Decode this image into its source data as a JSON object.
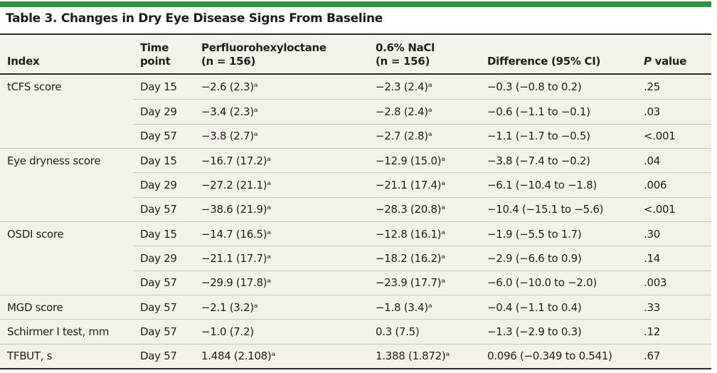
{
  "title": "Table 3. Changes in Dry Eye Disease Signs From Baseline",
  "colors": {
    "accent_green": "#2e9440",
    "table_bg": "#f3f1e8",
    "rule_dark": "#2b2b26",
    "rule_light": "#c9c7bb"
  },
  "header": {
    "index": "Index",
    "time_point": [
      "Time",
      "point"
    ],
    "drug": [
      "Perfluorohexyloctane",
      "(n = 156)"
    ],
    "control": [
      "0.6% NaCl",
      "(n = 156)"
    ],
    "difference": "Difference (95% CI)",
    "p_label_italic": "P",
    "p_label_rest": "value"
  },
  "rows": [
    {
      "index": "tCFS score",
      "time": "Day 15",
      "drug": "−2.6 (2.3)ᵃ",
      "control": "−2.3 (2.4)ᵃ",
      "diff": "−0.3 (−0.8 to 0.2)",
      "p": ".25"
    },
    {
      "index": "",
      "time": "Day 29",
      "drug": "−3.4 (2.3)ᵃ",
      "control": "−2.8 (2.4)ᵃ",
      "diff": "−0.6 (−1.1 to −0.1)",
      "p": ".03"
    },
    {
      "index": "",
      "time": "Day 57",
      "drug": "−3.8 (2.7)ᵃ",
      "control": "−2.7 (2.8)ᵃ",
      "diff": "−1.1 (−1.7 to −0.5)",
      "p": "<.001"
    },
    {
      "index": "Eye dryness score",
      "time": "Day 15",
      "drug": "−16.7 (17.2)ᵃ",
      "control": "−12.9 (15.0)ᵃ",
      "diff": "−3.8 (−7.4 to −0.2)",
      "p": ".04"
    },
    {
      "index": "",
      "time": "Day 29",
      "drug": "−27.2 (21.1)ᵃ",
      "control": "−21.1 (17.4)ᵃ",
      "diff": "−6.1 (−10.4 to −1.8)",
      "p": ".006"
    },
    {
      "index": "",
      "time": "Day 57",
      "drug": "−38.6 (21.9)ᵃ",
      "control": "−28.3 (20.8)ᵃ",
      "diff": "−10.4 (−15.1 to −5.6)",
      "p": "<.001"
    },
    {
      "index": "OSDI score",
      "time": "Day 15",
      "drug": "−14.7 (16.5)ᵃ",
      "control": "−12.8 (16.1)ᵃ",
      "diff": "−1.9 (−5.5 to 1.7)",
      "p": ".30"
    },
    {
      "index": "",
      "time": "Day 29",
      "drug": "−21.1 (17.7)ᵃ",
      "control": "−18.2 (16.2)ᵃ",
      "diff": "−2.9 (−6.6 to 0.9)",
      "p": ".14"
    },
    {
      "index": "",
      "time": "Day 57",
      "drug": "−29.9 (17.8)ᵃ",
      "control": "−23.9 (17.7)ᵃ",
      "diff": "−6.0 (−10.0 to −2.0)",
      "p": ".003"
    },
    {
      "index": "MGD score",
      "time": "Day 57",
      "drug": "−2.1 (3.2)ᵃ",
      "control": "−1.8 (3.4)ᵃ",
      "diff": "−0.4 (−1.1 to 0.4)",
      "p": ".33"
    },
    {
      "index": "Schirmer I test, mm",
      "time": "Day 57",
      "drug": "−1.0 (7.2)",
      "control": "0.3 (7.5)",
      "diff": "−1.3 (−2.9 to 0.3)",
      "p": ".12"
    },
    {
      "index": "TFBUT, s",
      "time": "Day 57",
      "drug": "1.484 (2.108)ᵃ",
      "control": "1.388 (1.872)ᵃ",
      "diff": "0.096 (−0.349 to 0.541)",
      "p": ".67"
    }
  ]
}
